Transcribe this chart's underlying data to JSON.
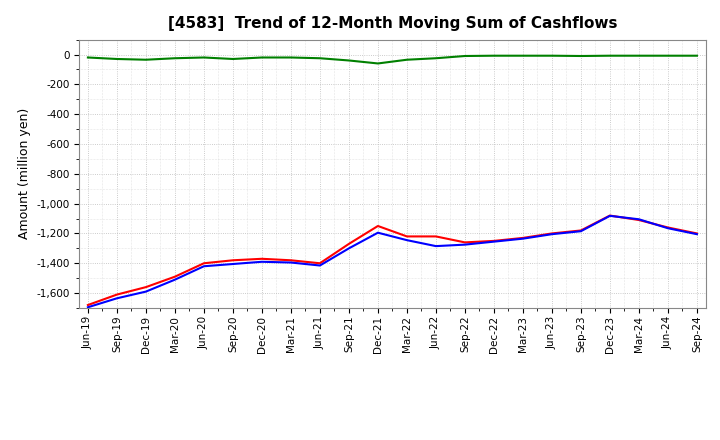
{
  "title": "[4583]  Trend of 12-Month Moving Sum of Cashflows",
  "ylabel": "Amount (million yen)",
  "ylim": [
    -1700,
    100
  ],
  "yticks": [
    0,
    -200,
    -400,
    -600,
    -800,
    -1000,
    -1200,
    -1400,
    -1600
  ],
  "x_labels": [
    "Jun-19",
    "Sep-19",
    "Dec-19",
    "Mar-20",
    "Jun-20",
    "Sep-20",
    "Dec-20",
    "Mar-21",
    "Jun-21",
    "Sep-21",
    "Dec-21",
    "Mar-22",
    "Jun-22",
    "Sep-22",
    "Dec-22",
    "Mar-23",
    "Jun-23",
    "Sep-23",
    "Dec-23",
    "Mar-24",
    "Jun-24",
    "Sep-24"
  ],
  "operating_cashflow": [
    -1680,
    -1610,
    -1560,
    -1490,
    -1400,
    -1380,
    -1370,
    -1380,
    -1400,
    -1270,
    -1150,
    -1220,
    -1220,
    -1260,
    -1250,
    -1230,
    -1200,
    -1180,
    -1080,
    -1110,
    -1160,
    -1200
  ],
  "investing_cashflow": [
    -20,
    -30,
    -35,
    -25,
    -20,
    -30,
    -20,
    -20,
    -25,
    -40,
    -60,
    -35,
    -25,
    -10,
    -8,
    -8,
    -8,
    -10,
    -8,
    -8,
    -8,
    -8
  ],
  "free_cashflow": [
    -1695,
    -1635,
    -1590,
    -1510,
    -1420,
    -1405,
    -1390,
    -1395,
    -1415,
    -1300,
    -1195,
    -1245,
    -1285,
    -1275,
    -1255,
    -1235,
    -1205,
    -1185,
    -1082,
    -1105,
    -1165,
    -1205
  ],
  "operating_color": "#ff0000",
  "investing_color": "#008000",
  "free_color": "#0000ff",
  "background_color": "#ffffff",
  "plot_bg_color": "#ffffff",
  "grid_color": "#bbbbbb",
  "title_fontsize": 11,
  "label_fontsize": 9,
  "tick_fontsize": 7.5,
  "legend_fontsize": 8.5,
  "line_width": 1.5
}
